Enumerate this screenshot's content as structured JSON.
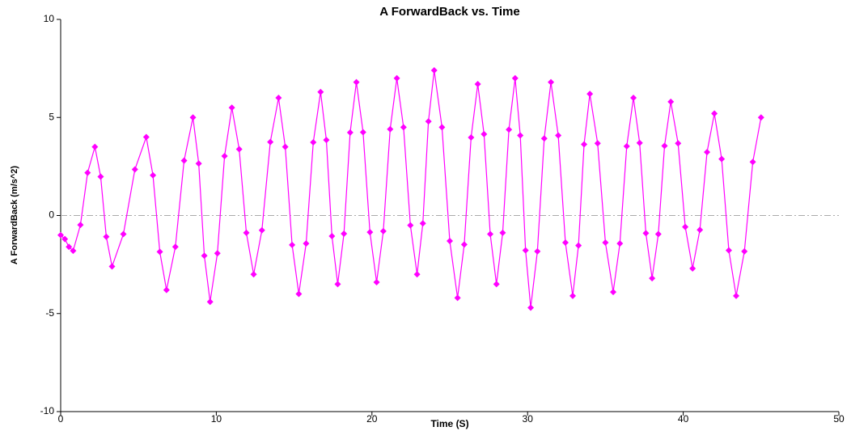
{
  "chart_data": {
    "type": "line",
    "title": "A ForwardBack vs. Time",
    "xlabel": "Time (S)",
    "ylabel": "A ForwardBack (m/s^2)",
    "xlim": [
      0,
      50
    ],
    "ylim": [
      -10,
      10
    ],
    "xticks": [
      0,
      10,
      20,
      30,
      40,
      50
    ],
    "yticks": [
      -10,
      -5,
      0,
      5,
      10
    ],
    "zero_line": true,
    "series": [
      {
        "name": "A ForwardBack",
        "color": "#ff00ff",
        "x": [
          0,
          0.27,
          0.53,
          0.8,
          1.27,
          1.73,
          2.2,
          2.57,
          2.93,
          3.3,
          4.03,
          4.77,
          5.5,
          5.93,
          6.37,
          6.8,
          7.37,
          7.93,
          8.5,
          8.87,
          9.23,
          9.6,
          10.07,
          10.53,
          11,
          11.47,
          11.93,
          12.4,
          12.93,
          13.47,
          14,
          14.43,
          14.87,
          15.3,
          15.77,
          16.23,
          16.7,
          17.07,
          17.43,
          17.8,
          18.2,
          18.6,
          19,
          19.43,
          19.87,
          20.3,
          20.73,
          21.17,
          21.6,
          22.03,
          22.47,
          22.9,
          23.27,
          23.63,
          24,
          24.5,
          25,
          25.5,
          25.93,
          26.37,
          26.8,
          27.2,
          27.6,
          28,
          28.4,
          28.8,
          29.2,
          29.53,
          29.87,
          30.2,
          30.63,
          31.07,
          31.5,
          31.97,
          32.43,
          32.9,
          33.27,
          33.63,
          34,
          34.5,
          35,
          35.5,
          35.93,
          36.37,
          36.8,
          37.2,
          37.6,
          38,
          38.4,
          38.8,
          39.2,
          39.67,
          40.13,
          40.6,
          41.07,
          41.53,
          42,
          42.47,
          42.93,
          43.4,
          43.93,
          44.47,
          45
        ],
        "values": [
          -1,
          -1.2,
          -1.6,
          -1.8,
          -0.48,
          2.18,
          3.5,
          1.98,
          -1.08,
          -2.6,
          -0.95,
          2.35,
          4,
          2.05,
          -1.85,
          -3.8,
          -1.6,
          2.8,
          5,
          2.65,
          -2.05,
          -4.4,
          -1.93,
          3.03,
          5.5,
          3.38,
          -0.88,
          -3,
          -0.75,
          3.75,
          6,
          3.5,
          -1.5,
          -4,
          -1.43,
          3.73,
          6.3,
          3.85,
          -1.05,
          -3.5,
          -0.93,
          4.23,
          6.8,
          4.25,
          -0.85,
          -3.4,
          -0.8,
          4.4,
          7,
          4.5,
          -0.5,
          -3,
          -0.4,
          4.8,
          7.4,
          4.5,
          -1.3,
          -4.2,
          -1.48,
          3.98,
          6.7,
          4.15,
          -0.95,
          -3.5,
          -0.88,
          4.38,
          7,
          4.08,
          -1.78,
          -4.7,
          -1.83,
          3.93,
          6.8,
          4.08,
          -1.38,
          -4.1,
          -1.53,
          3.63,
          6.2,
          3.68,
          -1.38,
          -3.9,
          -1.43,
          3.53,
          6,
          3.7,
          -0.9,
          -3.2,
          -0.95,
          3.55,
          5.8,
          3.68,
          -0.58,
          -2.7,
          -0.73,
          3.23,
          5.2,
          2.88,
          -1.78,
          -4.1,
          -1.83,
          2.73,
          5
        ]
      }
    ]
  }
}
